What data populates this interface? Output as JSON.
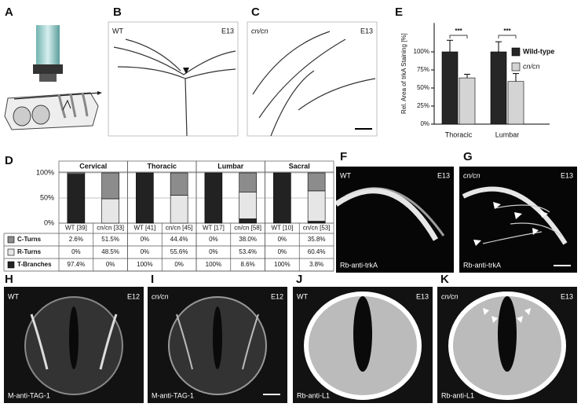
{
  "panels": {
    "A": {
      "letter": "A"
    },
    "B": {
      "letter": "B",
      "condition": "WT",
      "stage": "E13"
    },
    "C": {
      "letter": "C",
      "condition": "cn/cn",
      "stage": "E13"
    },
    "D": {
      "letter": "D"
    },
    "E": {
      "letter": "E"
    },
    "F": {
      "letter": "F",
      "condition": "WT",
      "stage": "E13",
      "antibody": "Rb-anti-trkA"
    },
    "G": {
      "letter": "G",
      "condition": "cn/cn",
      "stage": "E13",
      "antibody": "Rb-anti-trkA"
    },
    "H": {
      "letter": "H",
      "condition": "WT",
      "stage": "E12",
      "antibody": "M-anti-TAG-1"
    },
    "I": {
      "letter": "I",
      "condition": "cn/cn",
      "stage": "E12",
      "antibody": "M-anti-TAG-1"
    },
    "J": {
      "letter": "J",
      "condition": "WT",
      "stage": "E13",
      "antibody": "Rb-anti-L1"
    },
    "K": {
      "letter": "K",
      "condition": "cn/cn",
      "stage": "E13",
      "antibody": "Rb-anti-L1"
    }
  },
  "chart_data": [
    {
      "type": "bar",
      "ylabel": "Rel. Area of trkA Staining [%]",
      "categories": [
        "Thoracic",
        "Lumbar"
      ],
      "series": [
        {
          "name": "Wild-type",
          "color": "#262626",
          "values": [
            100,
            100
          ],
          "errors": [
            16,
            14
          ]
        },
        {
          "name": "cn/cn",
          "color": "#d4d4d4",
          "values": [
            64,
            59
          ],
          "errors": [
            5,
            11
          ]
        }
      ],
      "annotations": [
        "***",
        "***"
      ],
      "ylim": [
        0,
        140
      ],
      "yticks": [
        {
          "value": 0,
          "label": "0%"
        },
        {
          "value": 25,
          "label": "25%"
        },
        {
          "value": 50,
          "label": "50%"
        },
        {
          "value": 75,
          "label": "75%"
        },
        {
          "value": 100,
          "label": "100%"
        }
      ]
    },
    {
      "type": "stacked_bar",
      "groups": [
        "Cervical",
        "Thoracic",
        "Lumbar",
        "Sacral"
      ],
      "categories": [
        "WT [39]",
        "cn/cn [33]",
        "WT [41]",
        "cn/cn [45]",
        "WT [17]",
        "cn/cn [58]",
        "WT [10]",
        "cn/cn [53]"
      ],
      "series": [
        {
          "name": "C-Turns",
          "color": "#8c8c8c",
          "values": [
            2.6,
            51.5,
            0,
            44.4,
            0,
            38.0,
            0,
            35.8
          ],
          "value_labels": [
            "2.6%",
            "51.5%",
            "0%",
            "44.4%",
            "0%",
            "38.0%",
            "0%",
            "35.8%"
          ]
        },
        {
          "name": "R-Turns",
          "color": "#e6e6e6",
          "values": [
            0,
            48.5,
            0,
            55.6,
            0,
            53.4,
            0,
            60.4
          ],
          "value_labels": [
            "0%",
            "48.5%",
            "0%",
            "55.6%",
            "0%",
            "53.4%",
            "0%",
            "60.4%"
          ]
        },
        {
          "name": "T-Branches",
          "color": "#222222",
          "values": [
            97.4,
            0,
            100,
            0,
            100,
            8.6,
            100,
            3.8
          ],
          "value_labels": [
            "97.4%",
            "0%",
            "100%",
            "0%",
            "100%",
            "8.6%",
            "100%",
            "3.8%"
          ]
        }
      ],
      "ylim": [
        0,
        100
      ],
      "yticks": [
        {
          "value": 0,
          "label": "0%"
        },
        {
          "value": 50,
          "label": "50%"
        },
        {
          "value": 100,
          "label": "100%"
        }
      ],
      "grid": true
    }
  ]
}
